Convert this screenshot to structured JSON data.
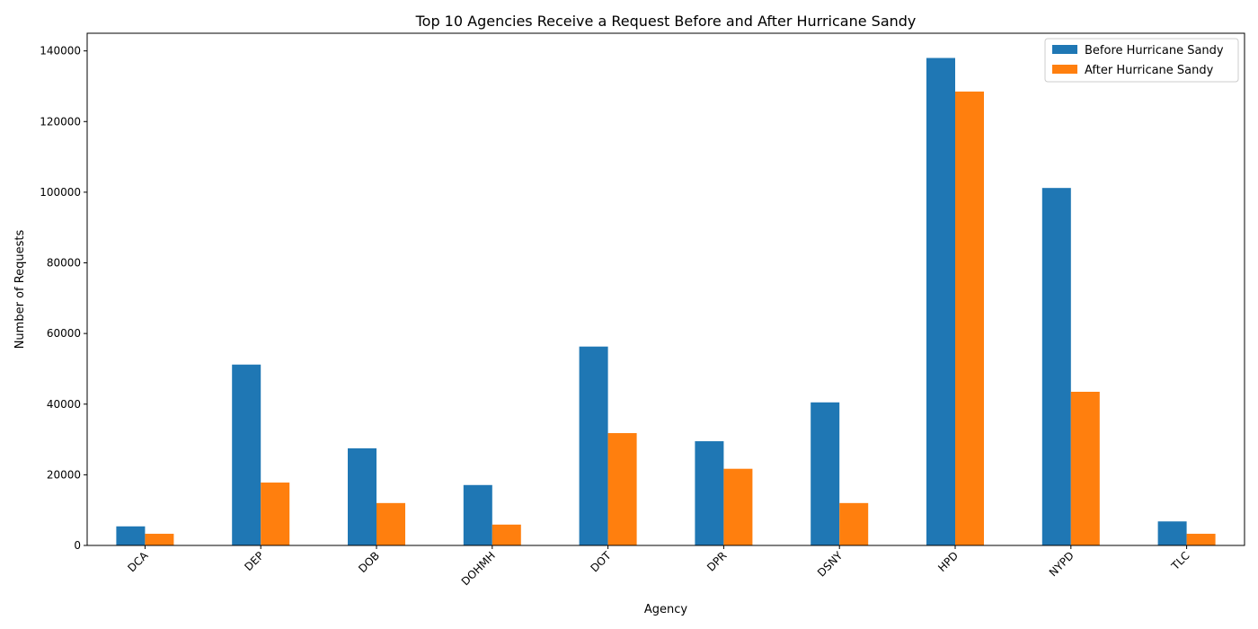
{
  "chart_data": {
    "type": "bar",
    "title": "Top 10 Agencies Receive a Request Before and After Hurricane Sandy",
    "xlabel": "Agency",
    "ylabel": "Number of Requests",
    "categories": [
      "DCA",
      "DEP",
      "DOB",
      "DOHMH",
      "DOT",
      "DPR",
      "DSNY",
      "HPD",
      "NYPD",
      "TLC"
    ],
    "series": [
      {
        "name": "Before Hurricane Sandy",
        "color": "#1f77b4",
        "values": [
          5400,
          51200,
          27500,
          17100,
          56300,
          29500,
          40500,
          138000,
          101200,
          6800
        ]
      },
      {
        "name": "After Hurricane Sandy",
        "color": "#ff7f0e",
        "values": [
          3300,
          17800,
          12000,
          5900,
          31800,
          21700,
          12000,
          128500,
          43500,
          3300
        ]
      }
    ],
    "ylim": [
      0,
      145000
    ],
    "yticks": [
      0,
      20000,
      40000,
      60000,
      80000,
      100000,
      120000,
      140000
    ],
    "grid": false,
    "legend": "top-right"
  }
}
